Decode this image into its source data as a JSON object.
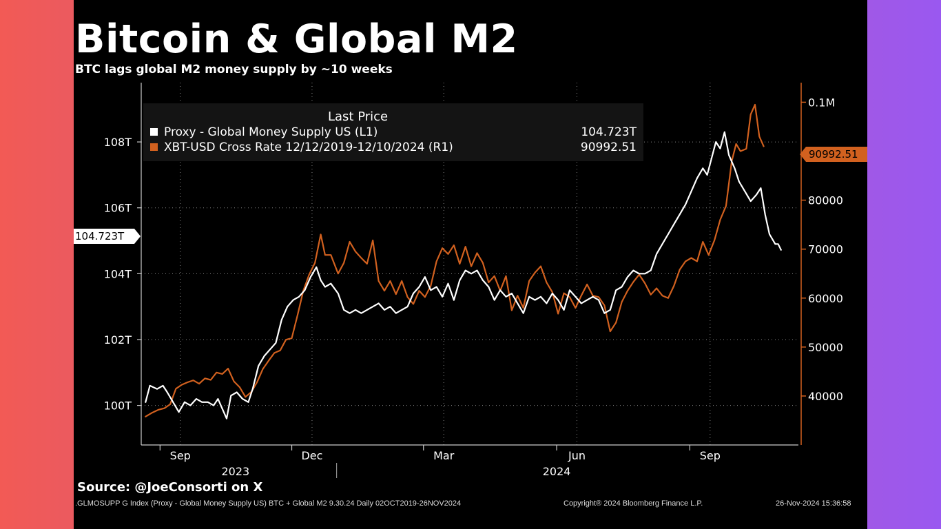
{
  "title": "Bitcoin & Global M2",
  "subtitle": "BTC lags global M2 money supply by ~10 weeks",
  "legend": {
    "title": "Last Price",
    "entries": [
      {
        "name": "Proxy - Global Money Supply US  (L1)",
        "value": "104.723T",
        "color": "#ffffff"
      },
      {
        "name": "XBT-USD Cross Rate 12/12/2019-12/10/2024   (R1)",
        "value": "90992.51",
        "color": "#d2611f"
      }
    ]
  },
  "tags": {
    "left_last": "104.723T",
    "right_last": "90992.51"
  },
  "source": "Source: @JoeConsorti on X",
  "footer": {
    "left": ".GLMOSUPP G Index (Proxy - Global Money Supply US) BTC + Global M2 9.30.24  Daily 02OCT2019-26NOV2024",
    "center": "Copyright® 2024 Bloomberg Finance L.P.",
    "right": "26-Nov-2024 15:36:58"
  },
  "chart_data": {
    "type": "line",
    "x_labels": {
      "months": [
        "Sep",
        "Dec",
        "Mar",
        "Jun",
        "Sep"
      ],
      "years": [
        "2023",
        "2024"
      ]
    },
    "y_left": {
      "ticks": [
        "100T",
        "102T",
        "104T",
        "106T",
        "108T"
      ],
      "range": [
        98.8,
        109.8
      ],
      "unit": "T"
    },
    "y_right": {
      "ticks": [
        "40000",
        "50000",
        "60000",
        "70000",
        "80000",
        "0.1M"
      ],
      "range": [
        30000,
        104000
      ]
    },
    "grid": true,
    "legend_position": "top-left",
    "series": [
      {
        "name": "Proxy - Global Money Supply US  (L1)",
        "axis": "left",
        "color": "#ffffff",
        "points": [
          [
            "2023-08-22",
            100.1
          ],
          [
            "2023-08-25",
            100.6
          ],
          [
            "2023-08-30",
            100.5
          ],
          [
            "2023-09-03",
            100.6
          ],
          [
            "2023-09-06",
            100.4
          ],
          [
            "2023-09-10",
            100.1
          ],
          [
            "2023-09-14",
            99.8
          ],
          [
            "2023-09-18",
            100.1
          ],
          [
            "2023-09-22",
            100.0
          ],
          [
            "2023-09-26",
            100.2
          ],
          [
            "2023-09-30",
            100.1
          ],
          [
            "2023-10-04",
            100.1
          ],
          [
            "2023-10-08",
            100.0
          ],
          [
            "2023-10-11",
            100.2
          ],
          [
            "2023-10-14",
            99.9
          ],
          [
            "2023-10-17",
            99.6
          ],
          [
            "2023-10-20",
            100.3
          ],
          [
            "2023-10-24",
            100.4
          ],
          [
            "2023-10-28",
            100.2
          ],
          [
            "2023-11-01",
            100.1
          ],
          [
            "2023-11-04",
            100.5
          ],
          [
            "2023-11-08",
            101.2
          ],
          [
            "2023-11-12",
            101.5
          ],
          [
            "2023-11-16",
            101.7
          ],
          [
            "2023-11-20",
            101.9
          ],
          [
            "2023-11-24",
            102.6
          ],
          [
            "2023-11-28",
            103.0
          ],
          [
            "2023-12-02",
            103.2
          ],
          [
            "2023-12-06",
            103.3
          ],
          [
            "2023-12-10",
            103.5
          ],
          [
            "2023-12-14",
            103.9
          ],
          [
            "2023-12-18",
            104.2
          ],
          [
            "2023-12-21",
            103.8
          ],
          [
            "2023-12-24",
            103.6
          ],
          [
            "2023-12-28",
            103.7
          ],
          [
            "2024-01-02",
            103.4
          ],
          [
            "2024-01-06",
            102.9
          ],
          [
            "2024-01-10",
            102.8
          ],
          [
            "2024-01-14",
            102.9
          ],
          [
            "2024-01-18",
            102.8
          ],
          [
            "2024-01-22",
            102.9
          ],
          [
            "2024-01-26",
            103.0
          ],
          [
            "2024-01-30",
            103.1
          ],
          [
            "2024-02-03",
            102.9
          ],
          [
            "2024-02-07",
            103.0
          ],
          [
            "2024-02-11",
            102.8
          ],
          [
            "2024-02-15",
            102.9
          ],
          [
            "2024-02-19",
            103.0
          ],
          [
            "2024-02-23",
            103.4
          ],
          [
            "2024-02-27",
            103.6
          ],
          [
            "2024-03-02",
            103.9
          ],
          [
            "2024-03-06",
            103.5
          ],
          [
            "2024-03-10",
            103.6
          ],
          [
            "2024-03-14",
            103.3
          ],
          [
            "2024-03-18",
            103.7
          ],
          [
            "2024-03-22",
            103.2
          ],
          [
            "2024-03-26",
            103.8
          ],
          [
            "2024-03-30",
            104.1
          ],
          [
            "2024-04-03",
            104.0
          ],
          [
            "2024-04-07",
            104.1
          ],
          [
            "2024-04-11",
            103.8
          ],
          [
            "2024-04-15",
            103.6
          ],
          [
            "2024-04-19",
            103.2
          ],
          [
            "2024-04-23",
            103.5
          ],
          [
            "2024-04-27",
            103.3
          ],
          [
            "2024-05-01",
            103.4
          ],
          [
            "2024-05-05",
            103.1
          ],
          [
            "2024-05-09",
            102.8
          ],
          [
            "2024-05-13",
            103.3
          ],
          [
            "2024-05-17",
            103.2
          ],
          [
            "2024-05-21",
            103.3
          ],
          [
            "2024-05-25",
            103.1
          ],
          [
            "2024-05-29",
            103.4
          ],
          [
            "2024-06-02",
            103.2
          ],
          [
            "2024-06-06",
            102.9
          ],
          [
            "2024-06-10",
            103.5
          ],
          [
            "2024-06-14",
            103.3
          ],
          [
            "2024-06-18",
            103.1
          ],
          [
            "2024-06-22",
            103.2
          ],
          [
            "2024-06-26",
            103.3
          ],
          [
            "2024-06-30",
            103.2
          ],
          [
            "2024-07-04",
            102.8
          ],
          [
            "2024-07-08",
            102.9
          ],
          [
            "2024-07-12",
            103.5
          ],
          [
            "2024-07-16",
            103.6
          ],
          [
            "2024-07-20",
            103.9
          ],
          [
            "2024-07-24",
            104.1
          ],
          [
            "2024-07-28",
            104.0
          ],
          [
            "2024-08-01",
            104.0
          ],
          [
            "2024-08-05",
            104.1
          ],
          [
            "2024-08-09",
            104.6
          ],
          [
            "2024-08-13",
            104.9
          ],
          [
            "2024-08-17",
            105.2
          ],
          [
            "2024-08-21",
            105.5
          ],
          [
            "2024-08-25",
            105.8
          ],
          [
            "2024-08-29",
            106.1
          ],
          [
            "2024-09-02",
            106.5
          ],
          [
            "2024-09-06",
            106.9
          ],
          [
            "2024-09-10",
            107.2
          ],
          [
            "2024-09-13",
            107.0
          ],
          [
            "2024-09-16",
            107.5
          ],
          [
            "2024-09-19",
            108.0
          ],
          [
            "2024-09-22",
            107.8
          ],
          [
            "2024-09-25",
            108.3
          ],
          [
            "2024-09-28",
            107.6
          ],
          [
            "2024-10-02",
            107.2
          ],
          [
            "2024-10-05",
            106.8
          ],
          [
            "2024-10-09",
            106.5
          ],
          [
            "2024-10-13",
            106.2
          ],
          [
            "2024-10-17",
            106.4
          ],
          [
            "2024-10-20",
            106.6
          ],
          [
            "2024-10-23",
            105.8
          ],
          [
            "2024-10-26",
            105.2
          ],
          [
            "2024-10-30",
            104.9
          ],
          [
            "2024-11-01",
            104.9
          ],
          [
            "2024-11-03",
            104.723
          ]
        ]
      },
      {
        "name": "XBT-USD Cross Rate 12/12/2019-12/10/2024   (R1)",
        "axis": "right",
        "color": "#d2611f",
        "points": [
          [
            "2023-08-22",
            35800
          ],
          [
            "2023-08-26",
            36500
          ],
          [
            "2023-08-31",
            37200
          ],
          [
            "2023-09-04",
            37500
          ],
          [
            "2023-09-08",
            38300
          ],
          [
            "2023-09-12",
            41500
          ],
          [
            "2023-09-16",
            42300
          ],
          [
            "2023-09-20",
            42800
          ],
          [
            "2023-09-24",
            43200
          ],
          [
            "2023-09-28",
            42500
          ],
          [
            "2023-10-02",
            43600
          ],
          [
            "2023-10-06",
            43300
          ],
          [
            "2023-10-10",
            44800
          ],
          [
            "2023-10-14",
            44500
          ],
          [
            "2023-10-18",
            45600
          ],
          [
            "2023-10-22",
            43000
          ],
          [
            "2023-10-26",
            41800
          ],
          [
            "2023-10-30",
            39800
          ],
          [
            "2023-11-03",
            40800
          ],
          [
            "2023-11-07",
            42800
          ],
          [
            "2023-11-11",
            45500
          ],
          [
            "2023-11-15",
            47200
          ],
          [
            "2023-11-19",
            48800
          ],
          [
            "2023-11-23",
            49300
          ],
          [
            "2023-11-27",
            51500
          ],
          [
            "2023-12-01",
            51800
          ],
          [
            "2023-12-05",
            56500
          ],
          [
            "2023-12-09",
            61500
          ],
          [
            "2023-12-13",
            64800
          ],
          [
            "2023-12-17",
            67200
          ],
          [
            "2023-12-21",
            73000
          ],
          [
            "2023-12-24",
            68800
          ],
          [
            "2023-12-28",
            68800
          ],
          [
            "2024-01-02",
            65000
          ],
          [
            "2024-01-06",
            67200
          ],
          [
            "2024-01-10",
            71500
          ],
          [
            "2024-01-14",
            69500
          ],
          [
            "2024-01-18",
            68200
          ],
          [
            "2024-01-22",
            67000
          ],
          [
            "2024-01-26",
            71800
          ],
          [
            "2024-01-30",
            63500
          ],
          [
            "2024-02-03",
            61500
          ],
          [
            "2024-02-07",
            63500
          ],
          [
            "2024-02-11",
            60800
          ],
          [
            "2024-02-15",
            63500
          ],
          [
            "2024-02-19",
            60200
          ],
          [
            "2024-02-23",
            58800
          ],
          [
            "2024-02-27",
            61500
          ],
          [
            "2024-03-02",
            60200
          ],
          [
            "2024-03-06",
            62500
          ],
          [
            "2024-03-10",
            67500
          ],
          [
            "2024-03-14",
            70200
          ],
          [
            "2024-03-18",
            69000
          ],
          [
            "2024-03-22",
            70800
          ],
          [
            "2024-03-26",
            67000
          ],
          [
            "2024-03-30",
            70500
          ],
          [
            "2024-04-03",
            66500
          ],
          [
            "2024-04-07",
            69200
          ],
          [
            "2024-04-11",
            67200
          ],
          [
            "2024-04-15",
            63200
          ],
          [
            "2024-04-19",
            64500
          ],
          [
            "2024-04-23",
            61500
          ],
          [
            "2024-04-27",
            64500
          ],
          [
            "2024-05-01",
            57500
          ],
          [
            "2024-05-05",
            60500
          ],
          [
            "2024-05-09",
            58000
          ],
          [
            "2024-05-13",
            63500
          ],
          [
            "2024-05-17",
            65200
          ],
          [
            "2024-05-21",
            66500
          ],
          [
            "2024-05-25",
            63200
          ],
          [
            "2024-05-29",
            61200
          ],
          [
            "2024-06-02",
            56800
          ],
          [
            "2024-06-06",
            61000
          ],
          [
            "2024-06-10",
            60200
          ],
          [
            "2024-06-14",
            58000
          ],
          [
            "2024-06-18",
            60500
          ],
          [
            "2024-06-22",
            62800
          ],
          [
            "2024-06-26",
            60500
          ],
          [
            "2024-06-30",
            60200
          ],
          [
            "2024-07-04",
            58500
          ],
          [
            "2024-07-08",
            53200
          ],
          [
            "2024-07-12",
            55000
          ],
          [
            "2024-07-16",
            59200
          ],
          [
            "2024-07-20",
            61500
          ],
          [
            "2024-07-24",
            63300
          ],
          [
            "2024-07-28",
            64800
          ],
          [
            "2024-08-01",
            63000
          ],
          [
            "2024-08-05",
            60700
          ],
          [
            "2024-08-09",
            62000
          ],
          [
            "2024-08-13",
            60500
          ],
          [
            "2024-08-17",
            60000
          ],
          [
            "2024-08-21",
            62500
          ],
          [
            "2024-08-25",
            65800
          ],
          [
            "2024-08-29",
            67500
          ],
          [
            "2024-09-02",
            68200
          ],
          [
            "2024-09-06",
            67500
          ],
          [
            "2024-09-10",
            71500
          ],
          [
            "2024-09-14",
            68800
          ],
          [
            "2024-09-18",
            71800
          ],
          [
            "2024-09-22",
            76000
          ],
          [
            "2024-09-26",
            78800
          ],
          [
            "2024-09-30",
            88000
          ],
          [
            "2024-10-03",
            91500
          ],
          [
            "2024-10-06",
            90000
          ],
          [
            "2024-10-10",
            90500
          ],
          [
            "2024-10-13",
            97500
          ],
          [
            "2024-10-16",
            99500
          ],
          [
            "2024-10-19",
            93000
          ],
          [
            "2024-10-22",
            91000
          ]
        ]
      }
    ]
  }
}
